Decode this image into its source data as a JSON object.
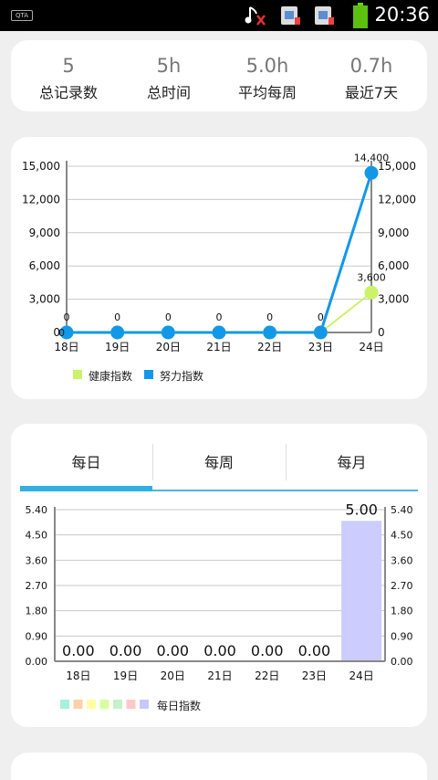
{
  "status_bar": {
    "carrier_badge": "QTA",
    "time": "20:36",
    "icons": [
      "music-muted-icon",
      "sim1-icon",
      "sim2-icon",
      "battery-icon"
    ]
  },
  "stats": [
    {
      "value": "5",
      "label": "总记录数"
    },
    {
      "value": "5h",
      "label": "总时间"
    },
    {
      "value": "5.0h",
      "label": "平均每周"
    },
    {
      "value": "0.7h",
      "label": "最近7天"
    }
  ],
  "line_chart": {
    "y_ticks": [
      "15,000",
      "12,000",
      "9,000",
      "6,000",
      "3,000",
      "0"
    ],
    "x_ticks": [
      "18日",
      "19日",
      "20日",
      "21日",
      "22日",
      "23日",
      "24日"
    ],
    "legend": [
      {
        "label": "健康指数",
        "color": "#ccf26a"
      },
      {
        "label": "努力指数",
        "color": "#1398e8"
      }
    ],
    "point_labels": [
      "0",
      "0",
      "0",
      "0",
      "0",
      "0",
      "14,400",
      "3,600"
    ]
  },
  "tabs": [
    "每日",
    "每周",
    "每月"
  ],
  "bar_chart": {
    "y_ticks": [
      "5.40",
      "4.50",
      "3.60",
      "2.70",
      "1.80",
      "0.90",
      "0.00"
    ],
    "x_ticks": [
      "18日",
      "19日",
      "20日",
      "21日",
      "22日",
      "23日",
      "24日"
    ],
    "bar_labels": [
      "0.00",
      "0.00",
      "0.00",
      "0.00",
      "0.00",
      "0.00",
      "5.00"
    ],
    "legend_label": "每日指数",
    "legend_colors": [
      "#a8f0d8",
      "#ffd0a8",
      "#ffffa0",
      "#d8ffa0",
      "#c8f0c8",
      "#ffc8c8",
      "#c8c8ff"
    ]
  },
  "chart_data": [
    {
      "type": "line",
      "title": "",
      "xlabel": "",
      "ylabel": "",
      "categories": [
        "18日",
        "19日",
        "20日",
        "21日",
        "22日",
        "23日",
        "24日"
      ],
      "ylim": [
        0,
        15000
      ],
      "grid": true,
      "legend": "bottom-left",
      "series": [
        {
          "name": "健康指数",
          "color": "#ccf26a",
          "values": [
            0,
            0,
            0,
            0,
            0,
            0,
            3600
          ]
        },
        {
          "name": "努力指数",
          "color": "#1398e8",
          "values": [
            0,
            0,
            0,
            0,
            0,
            0,
            14400
          ]
        }
      ]
    },
    {
      "type": "bar",
      "title": "",
      "xlabel": "",
      "ylabel": "",
      "categories": [
        "18日",
        "19日",
        "20日",
        "21日",
        "22日",
        "23日",
        "24日"
      ],
      "ylim": [
        0,
        5.4
      ],
      "grid": true,
      "legend": "bottom-left",
      "series": [
        {
          "name": "每日指数",
          "color": "#ccccff",
          "values": [
            0,
            0,
            0,
            0,
            0,
            0,
            5.0
          ]
        }
      ]
    }
  ]
}
